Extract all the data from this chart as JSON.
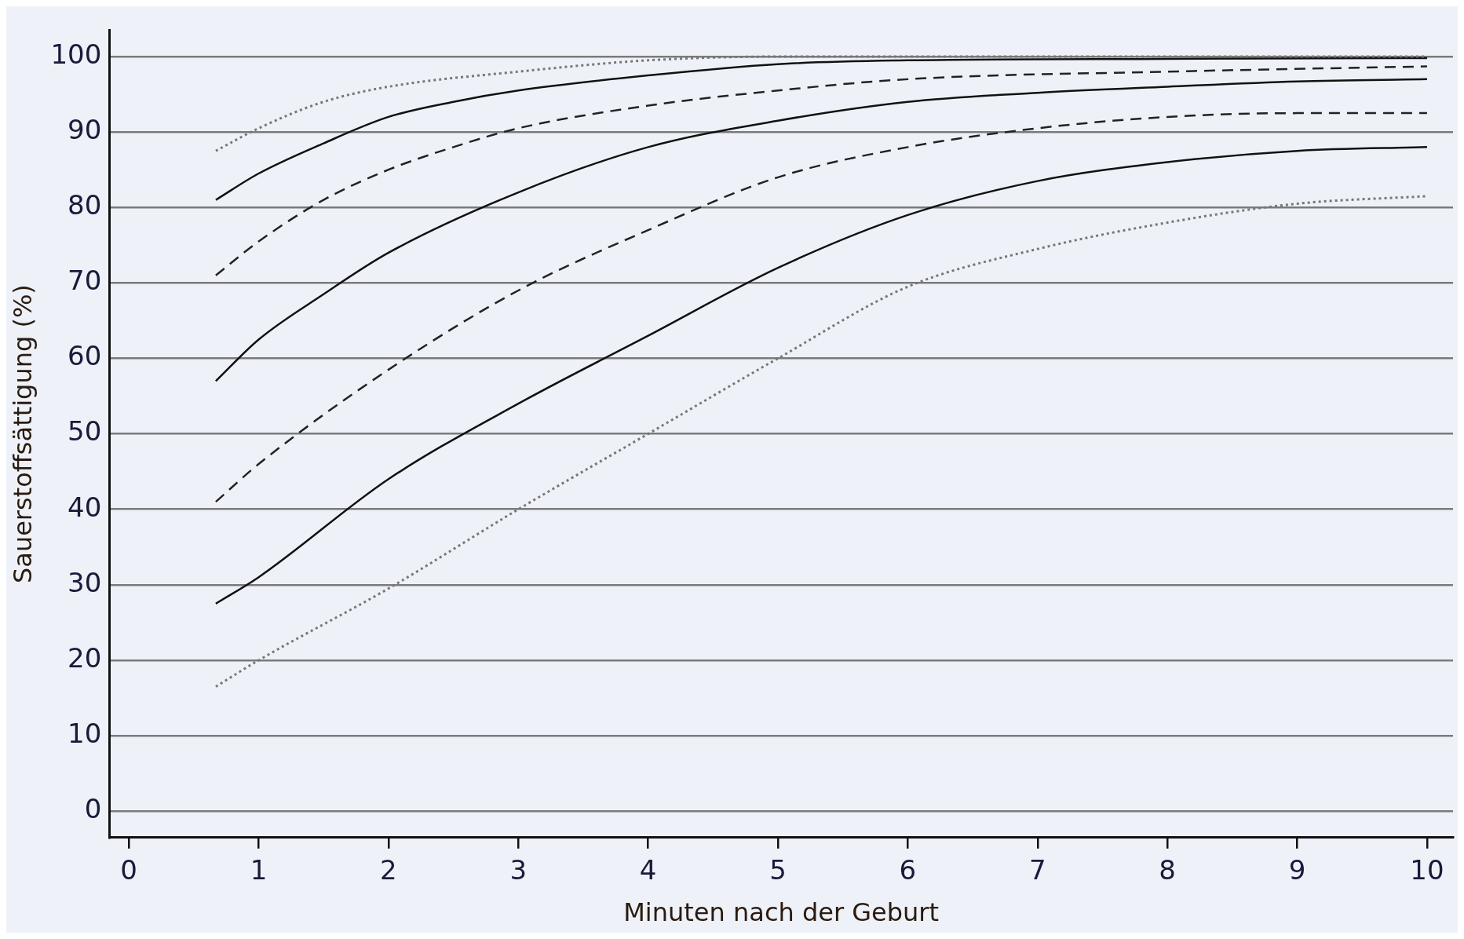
{
  "chart_data": {
    "type": "line",
    "xlabel": "Minuten nach der Geburt",
    "ylabel": "Sauerstoffsättigung (%)",
    "xlim": [
      -0.15,
      10.2
    ],
    "ylim": [
      -3.5,
      103.5
    ],
    "xticks": [
      0,
      1,
      2,
      3,
      4,
      5,
      6,
      7,
      8,
      9,
      10
    ],
    "yticks": [
      0,
      10,
      20,
      30,
      40,
      50,
      60,
      70,
      80,
      90,
      100
    ],
    "grid": "y",
    "marker": "none",
    "series": [
      {
        "color": "#777777",
        "line_style": "dotted",
        "x": [
          0.67,
          1,
          1.5,
          2,
          3,
          4,
          5,
          6,
          8,
          10
        ],
        "values": [
          87.5,
          90.5,
          94,
          96,
          98,
          99.5,
          100,
          100,
          100,
          100
        ]
      },
      {
        "color": "#111111",
        "line_style": "solid",
        "x": [
          0.67,
          1,
          1.5,
          2,
          2.5,
          3,
          4,
          5,
          6,
          8,
          10
        ],
        "values": [
          81,
          84.5,
          88.5,
          92,
          94,
          95.5,
          97.5,
          99,
          99.5,
          99.7,
          99.8
        ]
      },
      {
        "color": "#222222",
        "line_style": "dashed",
        "x": [
          0.67,
          1,
          1.5,
          2,
          2.5,
          3,
          4,
          5,
          6,
          8,
          10
        ],
        "values": [
          71,
          75.5,
          81,
          85,
          88,
          90.5,
          93.5,
          95.5,
          97,
          98,
          98.7
        ]
      },
      {
        "color": "#111111",
        "line_style": "solid",
        "x": [
          0.67,
          1,
          1.5,
          2,
          3,
          4,
          5,
          6,
          7,
          8,
          9,
          10
        ],
        "values": [
          57,
          62.5,
          68.5,
          74,
          82,
          88,
          91.5,
          94,
          95.2,
          96,
          96.7,
          97
        ]
      },
      {
        "color": "#222222",
        "line_style": "dashed",
        "x": [
          0.67,
          1,
          2,
          3,
          4,
          5,
          6,
          7,
          8,
          9,
          10
        ],
        "values": [
          41,
          46,
          58.5,
          69,
          77,
          84,
          88,
          90.5,
          92,
          92.5,
          92.5
        ]
      },
      {
        "color": "#111111",
        "line_style": "solid",
        "x": [
          0.67,
          1,
          2,
          3,
          4,
          5,
          6,
          7,
          8,
          9,
          10
        ],
        "values": [
          27.5,
          31,
          44,
          54,
          63,
          72,
          79,
          83.5,
          86,
          87.5,
          88
        ]
      },
      {
        "color": "#777777",
        "line_style": "dotted",
        "x": [
          0.67,
          1,
          2,
          3,
          4,
          5,
          6,
          7,
          8,
          9,
          10
        ],
        "values": [
          16.5,
          20,
          29.5,
          40,
          50,
          60,
          69.5,
          74.5,
          78,
          80.5,
          81.5
        ]
      }
    ]
  }
}
